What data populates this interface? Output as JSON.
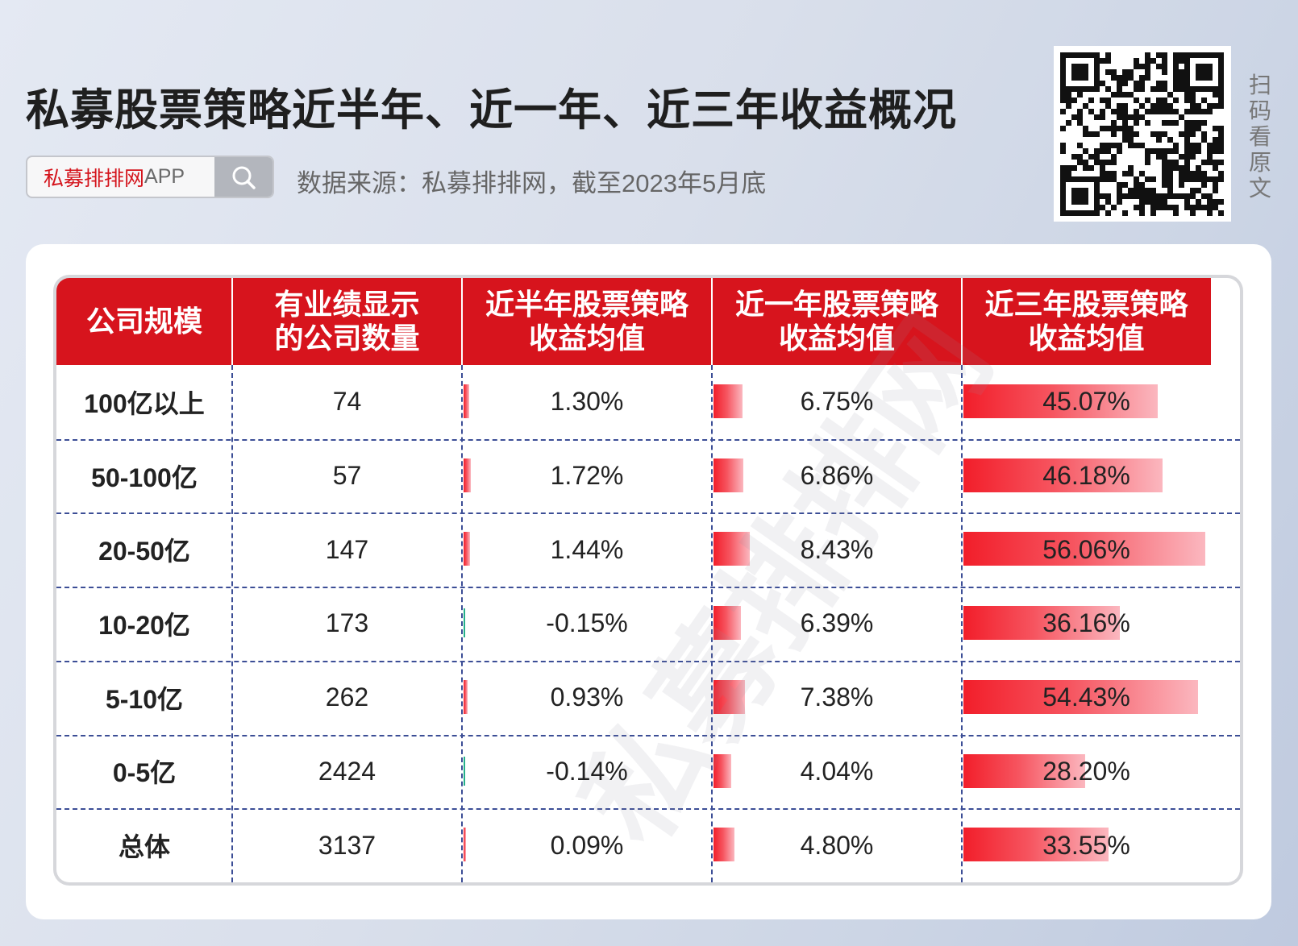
{
  "header": {
    "title": "私募股票策略近半年、近一年、近三年收益概况",
    "app_name_red": "私募排排网",
    "app_name_grey": "APP",
    "source": "数据来源：私募排排网，截至2023年5月底",
    "scan_label": "扫码看原文"
  },
  "watermark": "私募排排网",
  "table": {
    "headers": [
      "公司规模",
      "有业绩显示\n的公司数量",
      "近半年股票策略\n收益均值",
      "近一年股票策略\n收益均值",
      "近三年股票策略\n收益均值"
    ]
  },
  "colors": {
    "header_red": "#d7141d",
    "bar_red": "#f21e2a",
    "negative_green": "#25b08a"
  },
  "chart_data": {
    "type": "table",
    "columns": [
      "公司规模",
      "有业绩显示的公司数量",
      "近半年股票策略收益均值",
      "近一年股票策略收益均值",
      "近三年股票策略收益均值"
    ],
    "unit": "%",
    "rows": [
      {
        "size": "100亿以上",
        "count": "74",
        "half_year": 1.3,
        "one_year": 6.75,
        "three_year": 45.07
      },
      {
        "size": "50-100亿",
        "count": "57",
        "half_year": 1.72,
        "one_year": 6.86,
        "three_year": 46.18
      },
      {
        "size": "20-50亿",
        "count": "147",
        "half_year": 1.44,
        "one_year": 8.43,
        "three_year": 56.06
      },
      {
        "size": "10-20亿",
        "count": "173",
        "half_year": -0.15,
        "one_year": 6.39,
        "three_year": 36.16
      },
      {
        "size": "5-10亿",
        "count": "262",
        "half_year": 0.93,
        "one_year": 7.38,
        "three_year": 54.43
      },
      {
        "size": "0-5亿",
        "count": "2424",
        "half_year": -0.14,
        "one_year": 4.04,
        "three_year": 28.2
      },
      {
        "size": "总体",
        "count": "3137",
        "half_year": 0.09,
        "one_year": 4.8,
        "three_year": 33.55
      }
    ],
    "labels": [
      {
        "half_year": "1.30%",
        "one_year": "6.75%",
        "three_year": "45.07%"
      },
      {
        "half_year": "1.72%",
        "one_year": "6.86%",
        "three_year": "46.18%"
      },
      {
        "half_year": "1.44%",
        "one_year": "8.43%",
        "three_year": "56.06%"
      },
      {
        "half_year": "-0.15%",
        "one_year": "6.39%",
        "three_year": "36.16%"
      },
      {
        "half_year": "0.93%",
        "one_year": "7.38%",
        "three_year": "54.43%"
      },
      {
        "half_year": "-0.14%",
        "one_year": "4.04%",
        "three_year": "28.20%"
      },
      {
        "half_year": "0.09%",
        "one_year": "4.80%",
        "three_year": "33.55%"
      }
    ],
    "scale_max": 56.06
  }
}
